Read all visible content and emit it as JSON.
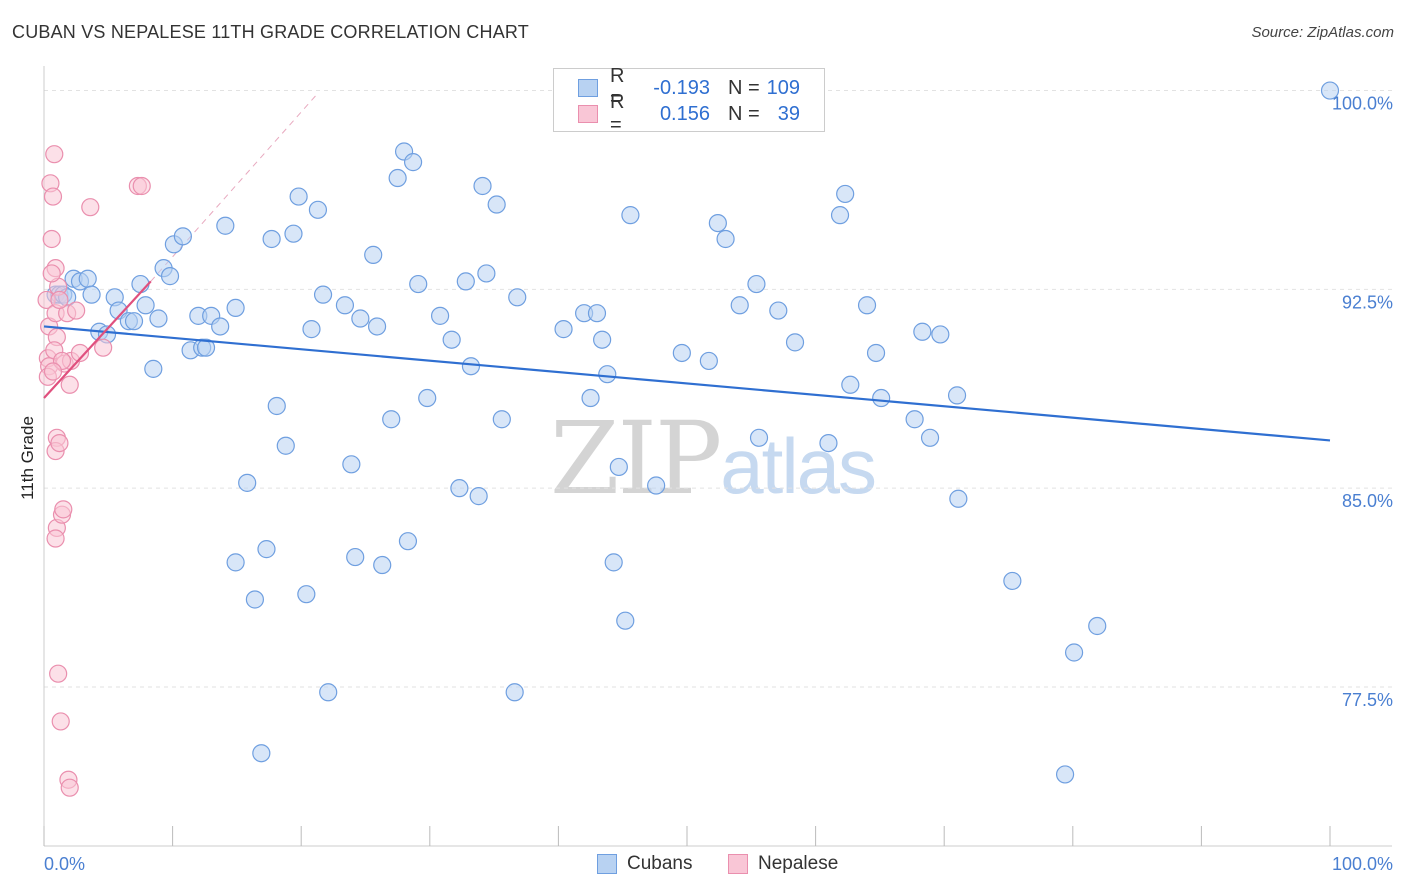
{
  "header": {
    "title": "CUBAN VS NEPALESE 11TH GRADE CORRELATION CHART",
    "source": "Source: ZipAtlas.com"
  },
  "watermark": {
    "zip": "ZIP",
    "atlas": "atlas"
  },
  "legend": {
    "rows": [
      {
        "r_label": "R =",
        "r_value": "-0.193",
        "n_label": "N =",
        "n_value": "109",
        "fill": "#b8d2f2",
        "stroke": "#6f9fe0"
      },
      {
        "r_label": "R =",
        "r_value": "0.156",
        "n_label": "N =",
        "n_value": "39",
        "fill": "#f9c6d6",
        "stroke": "#ea8fae"
      }
    ]
  },
  "bottom_legend": [
    {
      "label": "Cubans",
      "fill": "#b8d2f2",
      "stroke": "#6f9fe0"
    },
    {
      "label": "Nepalese",
      "fill": "#f9c6d6",
      "stroke": "#ea8fae"
    }
  ],
  "chart_data": {
    "type": "scatter",
    "title": "CUBAN VS NEPALESE 11TH GRADE CORRELATION CHART",
    "xlabel": "",
    "ylabel": "11th Grade",
    "xlim": [
      0,
      100
    ],
    "ylim": [
      71.5,
      100.7
    ],
    "x_tick_labels": [
      "0.0%",
      "100.0%"
    ],
    "y_ticks": [
      77.5,
      85.0,
      92.5,
      100.0
    ],
    "y_tick_labels": [
      "77.5%",
      "85.0%",
      "92.5%",
      "100.0%"
    ],
    "grid": true,
    "legend_position": "top-center",
    "series": [
      {
        "name": "Cubans",
        "color": "#6f9fe0",
        "fill": "#b8d2f2",
        "trend": {
          "x": [
            0,
            100
          ],
          "y": [
            91.1,
            86.8
          ],
          "color": "#2f6fd1"
        },
        "points": [
          [
            0.9,
            92.3
          ],
          [
            1.2,
            92.3
          ],
          [
            1.5,
            92.3
          ],
          [
            1.8,
            92.2
          ],
          [
            2.3,
            92.9
          ],
          [
            2.8,
            92.8
          ],
          [
            3.4,
            92.9
          ],
          [
            3.7,
            92.3
          ],
          [
            4.3,
            90.9
          ],
          [
            4.9,
            90.8
          ],
          [
            5.5,
            92.2
          ],
          [
            5.8,
            91.7
          ],
          [
            6.6,
            91.3
          ],
          [
            7.0,
            91.3
          ],
          [
            7.5,
            92.7
          ],
          [
            7.9,
            91.9
          ],
          [
            8.5,
            89.5
          ],
          [
            8.9,
            91.4
          ],
          [
            9.3,
            93.3
          ],
          [
            9.8,
            93.0
          ],
          [
            10.1,
            94.2
          ],
          [
            10.8,
            94.5
          ],
          [
            11.4,
            90.2
          ],
          [
            12.0,
            91.5
          ],
          [
            12.3,
            90.3
          ],
          [
            12.6,
            90.3
          ],
          [
            13.0,
            91.5
          ],
          [
            13.7,
            91.1
          ],
          [
            14.1,
            94.9
          ],
          [
            14.9,
            91.8
          ],
          [
            15.8,
            85.2
          ],
          [
            14.9,
            82.2
          ],
          [
            16.4,
            80.8
          ],
          [
            16.9,
            75.0
          ],
          [
            17.3,
            82.7
          ],
          [
            17.7,
            94.4
          ],
          [
            18.1,
            88.1
          ],
          [
            18.8,
            86.6
          ],
          [
            19.4,
            94.6
          ],
          [
            19.8,
            96.0
          ],
          [
            20.4,
            81.0
          ],
          [
            20.8,
            91.0
          ],
          [
            21.3,
            95.5
          ],
          [
            21.7,
            92.3
          ],
          [
            22.1,
            77.3
          ],
          [
            23.4,
            91.9
          ],
          [
            23.9,
            85.9
          ],
          [
            24.2,
            82.4
          ],
          [
            24.6,
            91.4
          ],
          [
            25.6,
            93.8
          ],
          [
            25.9,
            91.1
          ],
          [
            26.3,
            82.1
          ],
          [
            27.0,
            87.6
          ],
          [
            27.5,
            96.7
          ],
          [
            28.0,
            97.7
          ],
          [
            28.3,
            83.0
          ],
          [
            28.7,
            97.3
          ],
          [
            29.1,
            92.7
          ],
          [
            29.8,
            88.4
          ],
          [
            30.8,
            91.5
          ],
          [
            31.7,
            90.6
          ],
          [
            32.3,
            85.0
          ],
          [
            32.8,
            92.8
          ],
          [
            33.2,
            89.6
          ],
          [
            33.8,
            84.7
          ],
          [
            34.1,
            96.4
          ],
          [
            34.4,
            93.1
          ],
          [
            35.2,
            95.7
          ],
          [
            35.6,
            87.6
          ],
          [
            36.6,
            77.3
          ],
          [
            36.8,
            92.2
          ],
          [
            40.4,
            91.0
          ],
          [
            42.0,
            91.6
          ],
          [
            42.5,
            88.4
          ],
          [
            43.0,
            91.6
          ],
          [
            43.4,
            90.6
          ],
          [
            43.8,
            89.3
          ],
          [
            44.3,
            82.2
          ],
          [
            44.7,
            85.8
          ],
          [
            45.2,
            80.0
          ],
          [
            45.6,
            95.3
          ],
          [
            47.6,
            85.1
          ],
          [
            49.6,
            90.1
          ],
          [
            51.7,
            89.8
          ],
          [
            52.4,
            95.0
          ],
          [
            53.0,
            94.4
          ],
          [
            54.1,
            91.9
          ],
          [
            55.4,
            92.7
          ],
          [
            55.6,
            86.9
          ],
          [
            57.1,
            91.7
          ],
          [
            58.4,
            90.5
          ],
          [
            61.0,
            86.7
          ],
          [
            61.9,
            95.3
          ],
          [
            62.3,
            96.1
          ],
          [
            62.7,
            88.9
          ],
          [
            64.0,
            91.9
          ],
          [
            64.7,
            90.1
          ],
          [
            65.1,
            88.4
          ],
          [
            67.7,
            87.6
          ],
          [
            68.3,
            90.9
          ],
          [
            68.9,
            86.9
          ],
          [
            69.7,
            90.8
          ],
          [
            71.0,
            88.5
          ],
          [
            71.1,
            84.6
          ],
          [
            75.3,
            81.5
          ],
          [
            80.1,
            78.8
          ],
          [
            81.9,
            79.8
          ],
          [
            79.4,
            74.2
          ],
          [
            100.0,
            100.0
          ]
        ]
      },
      {
        "name": "Nepalese",
        "color": "#ea8fae",
        "fill": "#f9c6d6",
        "trend": {
          "x": [
            0,
            8.3
          ],
          "y": [
            88.4,
            92.8
          ],
          "color": "#e0507e"
        },
        "trend_extension": {
          "x": [
            8.3,
            21.3
          ],
          "y": [
            92.8,
            99.9
          ]
        },
        "points": [
          [
            0.2,
            92.1
          ],
          [
            0.3,
            89.9
          ],
          [
            0.4,
            89.6
          ],
          [
            0.3,
            89.2
          ],
          [
            0.4,
            91.1
          ],
          [
            0.5,
            96.5
          ],
          [
            0.6,
            94.4
          ],
          [
            0.7,
            96.0
          ],
          [
            0.8,
            97.6
          ],
          [
            0.9,
            93.3
          ],
          [
            1.0,
            90.7
          ],
          [
            1.1,
            92.6
          ],
          [
            0.9,
            91.6
          ],
          [
            0.6,
            93.1
          ],
          [
            0.8,
            90.2
          ],
          [
            1.0,
            86.9
          ],
          [
            0.9,
            86.4
          ],
          [
            1.0,
            83.5
          ],
          [
            0.9,
            83.1
          ],
          [
            1.2,
            86.7
          ],
          [
            1.4,
            84.0
          ],
          [
            1.5,
            84.2
          ],
          [
            1.6,
            89.7
          ],
          [
            1.8,
            91.6
          ],
          [
            2.0,
            88.9
          ],
          [
            2.1,
            89.8
          ],
          [
            1.1,
            78.0
          ],
          [
            1.3,
            76.2
          ],
          [
            1.9,
            74.0
          ],
          [
            2.0,
            73.7
          ],
          [
            2.5,
            91.7
          ],
          [
            2.8,
            90.1
          ],
          [
            3.6,
            95.6
          ],
          [
            4.6,
            90.3
          ],
          [
            7.3,
            96.4
          ],
          [
            7.6,
            96.4
          ],
          [
            1.4,
            89.8
          ],
          [
            0.7,
            89.4
          ],
          [
            1.2,
            92.1
          ]
        ]
      }
    ]
  }
}
